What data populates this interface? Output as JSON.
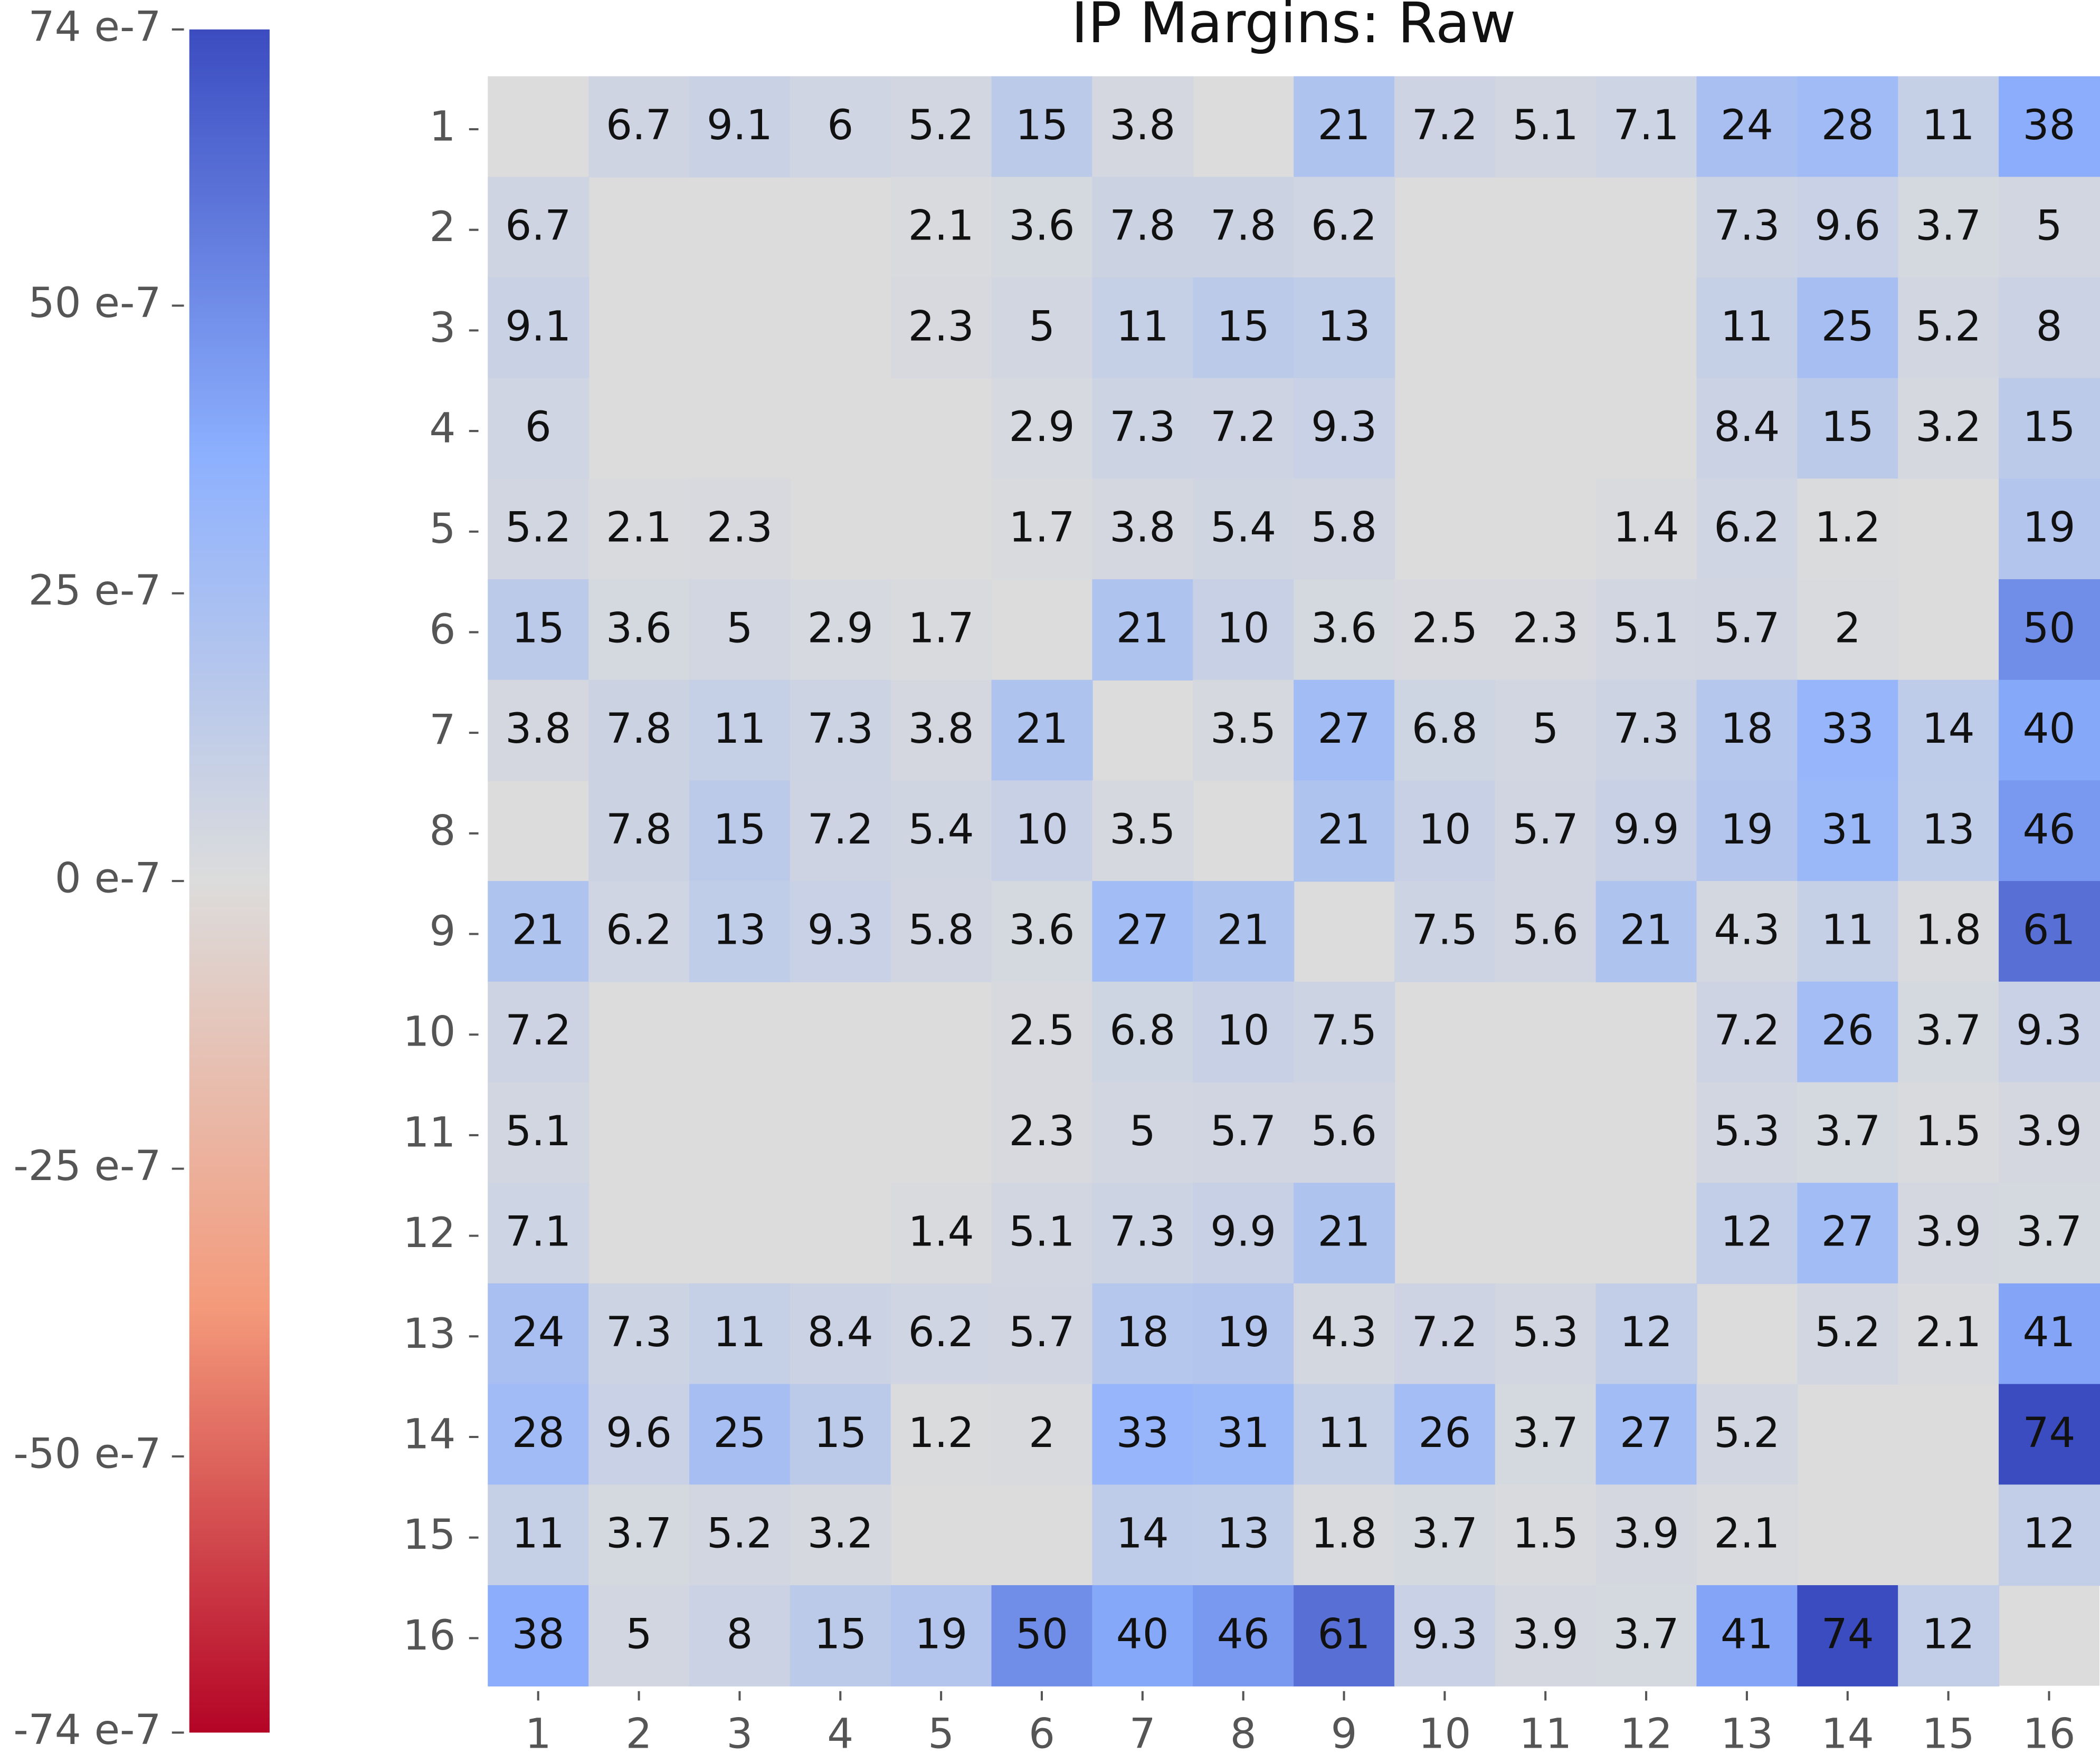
{
  "chart_data": {
    "type": "heatmap",
    "title": "IP Margins: Raw",
    "xcategories": [
      "1",
      "2",
      "3",
      "4",
      "5",
      "6",
      "7",
      "8",
      "9",
      "10",
      "11",
      "12",
      "13",
      "14",
      "15",
      "16"
    ],
    "ycategories": [
      "1",
      "2",
      "3",
      "4",
      "5",
      "6",
      "7",
      "8",
      "9",
      "10",
      "11",
      "12",
      "13",
      "14",
      "15",
      "16"
    ],
    "z": [
      [
        null,
        6.7,
        9.1,
        6,
        5.2,
        15,
        3.8,
        null,
        21,
        7.2,
        5.1,
        7.1,
        24,
        28,
        11,
        38
      ],
      [
        6.7,
        null,
        null,
        null,
        2.1,
        3.6,
        7.8,
        7.8,
        6.2,
        null,
        null,
        null,
        7.3,
        9.6,
        3.7,
        5
      ],
      [
        9.1,
        null,
        null,
        null,
        2.3,
        5,
        11,
        15,
        13,
        null,
        null,
        null,
        11,
        25,
        5.2,
        8
      ],
      [
        6,
        null,
        null,
        null,
        null,
        2.9,
        7.3,
        7.2,
        9.3,
        null,
        null,
        null,
        8.4,
        15,
        3.2,
        15
      ],
      [
        5.2,
        2.1,
        2.3,
        null,
        null,
        1.7,
        3.8,
        5.4,
        5.8,
        null,
        null,
        1.4,
        6.2,
        1.2,
        null,
        19
      ],
      [
        15,
        3.6,
        5,
        2.9,
        1.7,
        null,
        21,
        10,
        3.6,
        2.5,
        2.3,
        5.1,
        5.7,
        2,
        null,
        50
      ],
      [
        3.8,
        7.8,
        11,
        7.3,
        3.8,
        21,
        null,
        3.5,
        27,
        6.8,
        5,
        7.3,
        18,
        33,
        14,
        40
      ],
      [
        null,
        7.8,
        15,
        7.2,
        5.4,
        10,
        3.5,
        null,
        21,
        10,
        5.7,
        9.9,
        19,
        31,
        13,
        46
      ],
      [
        21,
        6.2,
        13,
        9.3,
        5.8,
        3.6,
        27,
        21,
        null,
        7.5,
        5.6,
        21,
        4.3,
        11,
        1.8,
        61
      ],
      [
        7.2,
        null,
        null,
        null,
        null,
        2.5,
        6.8,
        10,
        7.5,
        null,
        null,
        null,
        7.2,
        26,
        3.7,
        9.3
      ],
      [
        5.1,
        null,
        null,
        null,
        null,
        2.3,
        5,
        5.7,
        5.6,
        null,
        null,
        null,
        5.3,
        3.7,
        1.5,
        3.9
      ],
      [
        7.1,
        null,
        null,
        null,
        1.4,
        5.1,
        7.3,
        9.9,
        21,
        null,
        null,
        null,
        12,
        27,
        3.9,
        3.7
      ],
      [
        24,
        7.3,
        11,
        8.4,
        6.2,
        5.7,
        18,
        19,
        4.3,
        7.2,
        5.3,
        12,
        null,
        5.2,
        2.1,
        41
      ],
      [
        28,
        9.6,
        25,
        15,
        1.2,
        2,
        33,
        31,
        11,
        26,
        3.7,
        27,
        5.2,
        null,
        null,
        74
      ],
      [
        11,
        3.7,
        5.2,
        3.2,
        null,
        null,
        14,
        13,
        1.8,
        3.7,
        1.5,
        3.9,
        2.1,
        null,
        null,
        12
      ],
      [
        38,
        5,
        8,
        15,
        19,
        50,
        40,
        46,
        61,
        9.3,
        3.9,
        3.7,
        41,
        74,
        12,
        null
      ]
    ],
    "zlim": [
      -74,
      74
    ],
    "zticks": [
      {
        "value": 74,
        "label": "74 e-7"
      },
      {
        "value": 50,
        "label": "50 e-7"
      },
      {
        "value": 25,
        "label": "25 e-7"
      },
      {
        "value": 0,
        "label": "0 e-7"
      },
      {
        "value": -25,
        "label": "-25 e-7"
      },
      {
        "value": -50,
        "label": "-50 e-7"
      },
      {
        "value": -74,
        "label": "-74 e-7"
      }
    ],
    "colorscale": [
      "#b40426",
      "#f49a7b",
      "#dcdcdc",
      "#8db0fe",
      "#3b4cc0"
    ],
    "missing_color": "#dcdcdc"
  }
}
